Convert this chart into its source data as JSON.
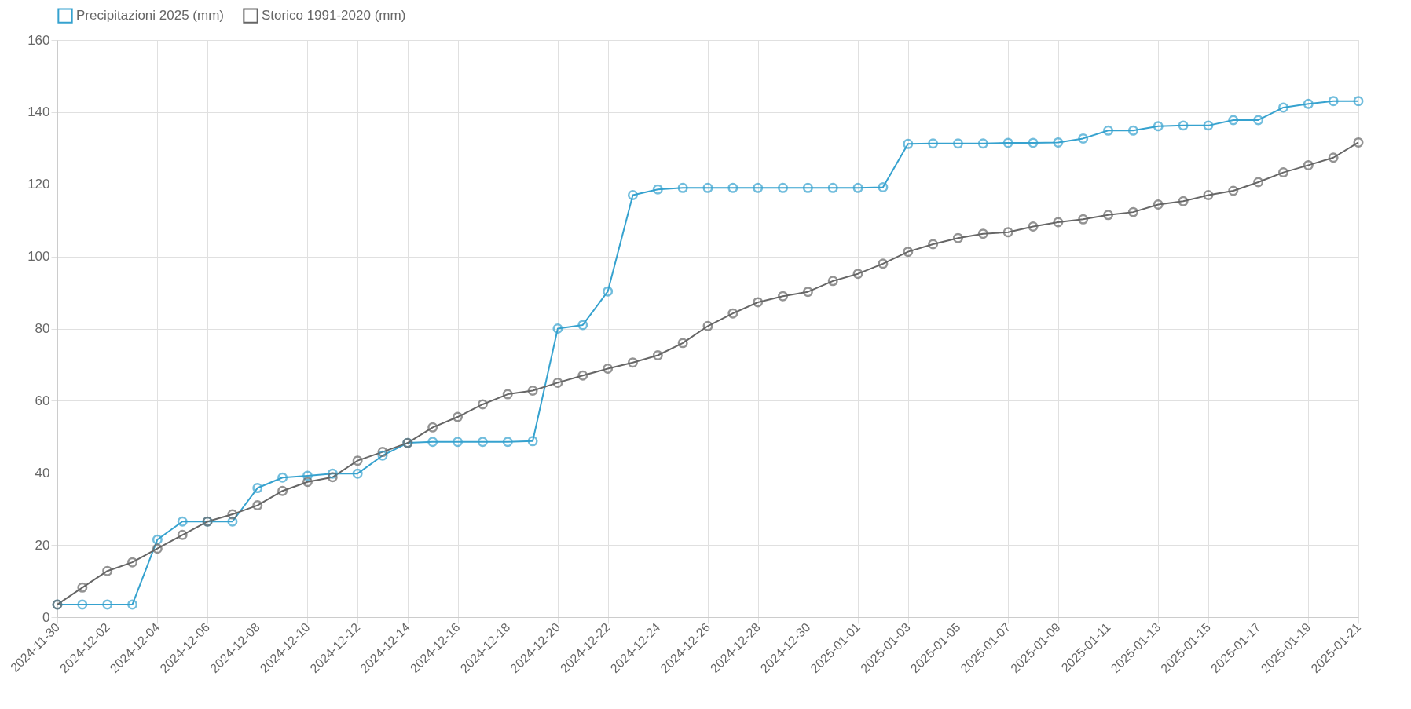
{
  "chart_data": {
    "type": "line",
    "x": [
      "2024-11-30",
      "2024-12-01",
      "2024-12-02",
      "2024-12-03",
      "2024-12-04",
      "2024-12-05",
      "2024-12-06",
      "2024-12-07",
      "2024-12-08",
      "2024-12-09",
      "2024-12-10",
      "2024-12-11",
      "2024-12-12",
      "2024-12-13",
      "2024-12-14",
      "2024-12-15",
      "2024-12-16",
      "2024-12-17",
      "2024-12-18",
      "2024-12-19",
      "2024-12-20",
      "2024-12-21",
      "2024-12-22",
      "2024-12-23",
      "2024-12-24",
      "2024-12-25",
      "2024-12-26",
      "2024-12-27",
      "2024-12-28",
      "2024-12-29",
      "2024-12-30",
      "2024-12-31",
      "2025-01-01",
      "2025-01-02",
      "2025-01-03",
      "2025-01-04",
      "2025-01-05",
      "2025-01-06",
      "2025-01-07",
      "2025-01-08",
      "2025-01-09",
      "2025-01-10",
      "2025-01-11",
      "2025-01-12",
      "2025-01-13",
      "2025-01-14",
      "2025-01-15",
      "2025-01-16",
      "2025-01-17",
      "2025-01-18",
      "2025-01-19",
      "2025-01-20",
      "2025-01-21"
    ],
    "series": [
      {
        "name": "Precipitazioni 2025 (mm)",
        "color": "#36a2cf",
        "values": [
          3.5,
          3.5,
          3.5,
          3.5,
          21.5,
          26.5,
          26.5,
          26.5,
          35.8,
          38.7,
          39.2,
          39.8,
          39.8,
          44.8,
          48.3,
          48.6,
          48.6,
          48.6,
          48.6,
          48.8,
          80,
          81,
          90.3,
          117,
          118.6,
          119,
          119,
          119,
          119,
          119,
          119,
          119,
          119,
          119.2,
          131.2,
          131.3,
          131.3,
          131.3,
          131.5,
          131.5,
          131.6,
          132.7,
          134.9,
          134.9,
          136.1,
          136.3,
          136.3,
          137.8,
          137.8,
          141.3,
          142.3,
          143.1,
          143.1
        ]
      },
      {
        "name": "Storico 1991-2020 (mm)",
        "color": "#666666",
        "values": [
          3.5,
          8.2,
          12.8,
          15.2,
          19,
          22.8,
          26.5,
          28.5,
          31,
          35,
          37.5,
          38.8,
          43.4,
          45.8,
          48.3,
          52.6,
          55.5,
          59,
          61.8,
          62.8,
          65,
          67,
          68.9,
          70.6,
          72.6,
          76,
          80.7,
          84.2,
          87.3,
          89,
          90.2,
          93.2,
          95.2,
          98,
          101.3,
          103.4,
          105.1,
          106.3,
          106.7,
          108.3,
          109.5,
          110.3,
          111.5,
          112.3,
          114.4,
          115.3,
          117,
          118.2,
          120.6,
          123.3,
          125.3,
          127.4,
          131.6
        ]
      }
    ],
    "xlim": [
      "2024-11-30",
      "2025-01-21"
    ],
    "xticks": [
      "2024-11-30",
      "2024-12-02",
      "2024-12-04",
      "2024-12-06",
      "2024-12-08",
      "2024-12-10",
      "2024-12-12",
      "2024-12-14",
      "2024-12-16",
      "2024-12-18",
      "2024-12-20",
      "2024-12-22",
      "2024-12-24",
      "2024-12-26",
      "2024-12-28",
      "2024-12-30",
      "2025-01-01",
      "2025-01-03",
      "2025-01-05",
      "2025-01-07",
      "2025-01-09",
      "2025-01-11",
      "2025-01-13",
      "2025-01-15",
      "2025-01-17",
      "2025-01-19",
      "2025-01-21"
    ],
    "ylim": [
      0,
      160
    ],
    "yticks": [
      0,
      20,
      40,
      60,
      80,
      100,
      120,
      140,
      160
    ],
    "grid": true,
    "legend": "top",
    "marker": "circle",
    "line_style": "solid"
  }
}
